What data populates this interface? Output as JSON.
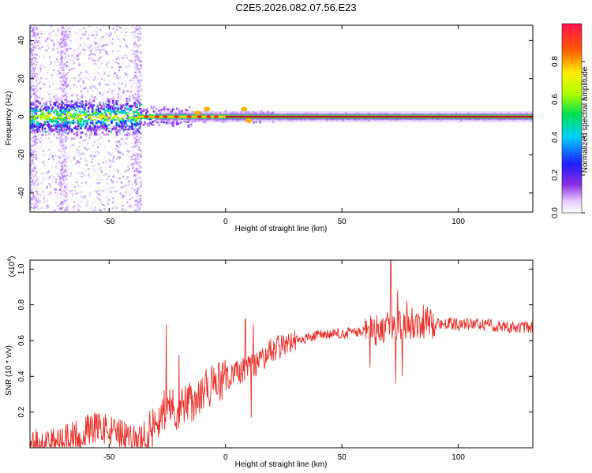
{
  "title": "C2E5.2026.082.07.56.E23",
  "chart_data": [
    {
      "type": "heatmap",
      "panel": "spectrogram",
      "xlabel": "Height of straight line (km)",
      "ylabel": "Frequency (Hz)",
      "xlim": [
        -84,
        132
      ],
      "ylim": [
        -50,
        48
      ],
      "x_ticks": [
        -50,
        0,
        50,
        100
      ],
      "x_tick_labels": [
        "-50",
        "0",
        "50",
        "100"
      ],
      "y_ticks": [
        -40,
        -20,
        0,
        20,
        40
      ],
      "y_tick_labels": [
        "-40",
        "-20",
        "0",
        "20",
        "40"
      ],
      "colorbar": {
        "label": "Normalized spectral amplitude",
        "range": [
          0,
          1
        ],
        "ticks": [
          0.0,
          0.2,
          0.4,
          0.6,
          0.8
        ],
        "tick_labels": [
          "0.0",
          "0.2",
          "0.4",
          "0.6",
          "0.8"
        ]
      },
      "description_points": {
        "centerline_freq_hz": 0,
        "broadband_noise_until_km": -37,
        "noisy_columns_km": [
          -83,
          -70,
          -38
        ]
      }
    },
    {
      "type": "line",
      "panel": "snr",
      "xlabel": "Height of straight line (km)",
      "ylabel": "SNR (10 * v/v)",
      "scale_label": "(x10",
      "scale_exponent": "4",
      "scale_close": ")",
      "xlim": [
        -84,
        132
      ],
      "ylim": [
        0,
        1.05
      ],
      "x_ticks": [
        -50,
        0,
        50,
        100
      ],
      "x_tick_labels": [
        "-50",
        "0",
        "50",
        "100"
      ],
      "y_ticks": [
        0.2,
        0.4,
        0.6,
        0.8,
        1.0
      ],
      "y_tick_labels": [
        "0.2",
        "0.4",
        "0.6",
        "0.8",
        "1.0"
      ],
      "line_color": "#e8302a",
      "envelope": {
        "x": [
          -84,
          -70,
          -62,
          -55,
          -45,
          -38,
          -34,
          -30,
          -26,
          -20,
          -16,
          -10,
          -6,
          0,
          5,
          10,
          15,
          20,
          30,
          40,
          50,
          60,
          65,
          70,
          75,
          80,
          90,
          100,
          110,
          120,
          132
        ],
        "y": [
          0.02,
          0.04,
          0.08,
          0.12,
          0.07,
          0.03,
          0.06,
          0.15,
          0.22,
          0.22,
          0.25,
          0.3,
          0.35,
          0.38,
          0.42,
          0.45,
          0.48,
          0.55,
          0.6,
          0.63,
          0.64,
          0.65,
          0.66,
          0.68,
          0.69,
          0.7,
          0.7,
          0.69,
          0.69,
          0.68,
          0.67
        ]
      },
      "spikes": [
        {
          "x": -25.5,
          "y": 0.69
        },
        {
          "x": -20,
          "y": 0.52
        },
        {
          "x": 8.5,
          "y": 0.72
        },
        {
          "x": 12,
          "y": 0.69
        },
        {
          "x": 63,
          "y": 0.7
        },
        {
          "x": 71,
          "y": 1.05
        },
        {
          "x": 74,
          "y": 0.88
        },
        {
          "x": 78,
          "y": 0.82
        },
        {
          "x": 85,
          "y": 0.8
        }
      ],
      "dips": [
        {
          "x": 11,
          "y": 0.17
        },
        {
          "x": 62,
          "y": 0.45
        },
        {
          "x": 73,
          "y": 0.36
        },
        {
          "x": 76,
          "y": 0.4
        }
      ]
    }
  ]
}
